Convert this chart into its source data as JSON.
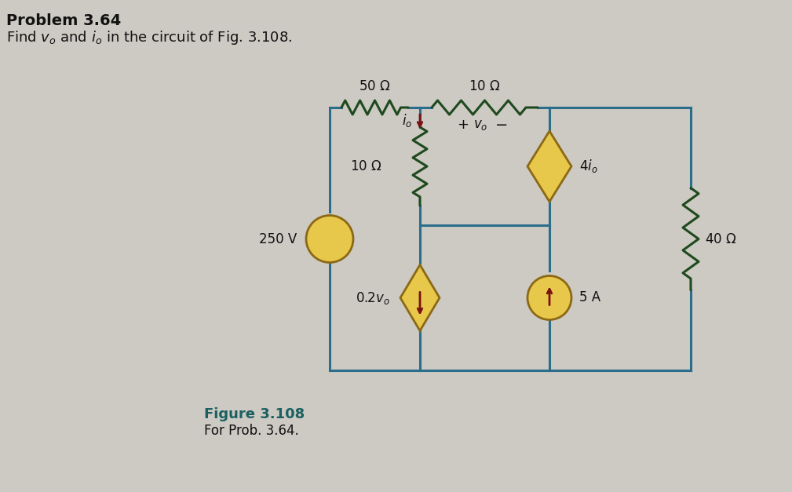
{
  "bg_color": "#cdc9c3",
  "wire_color": "#2a6e8c",
  "wire_lw": 2.2,
  "resistor_color": "#1e4a1e",
  "source_fill": "#e8c84a",
  "source_edge": "#8b6914",
  "arrow_color": "#7a1010",
  "text_color": "#111111",
  "figure_color": "#1a6060",
  "title_bold": "Problem 3.64",
  "title_normal": "Find $v_o$ and $i_o$ in the circuit of Fig. 3.108.",
  "figure_label_bold": "Figure 3.108",
  "figure_label_normal": "For Prob. 3.64."
}
